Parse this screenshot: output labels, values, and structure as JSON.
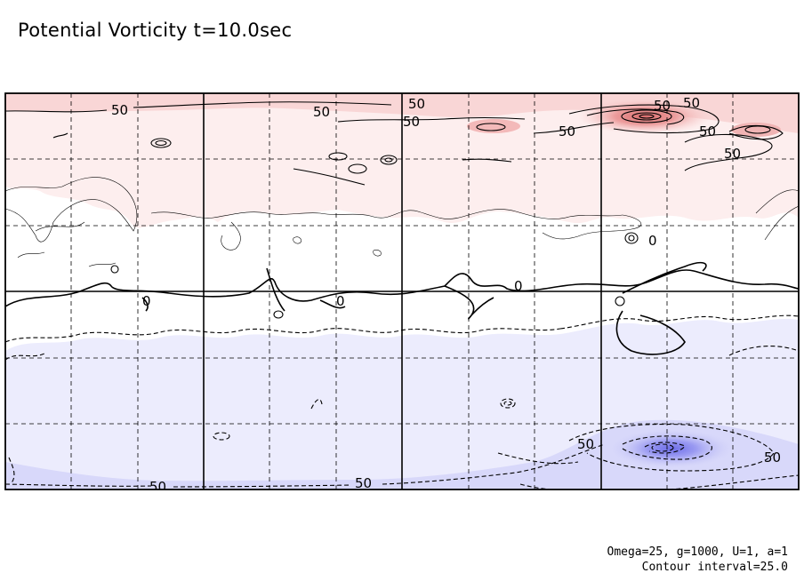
{
  "title": "Potential Vorticity t=10.0sec",
  "params": {
    "line1": "Omega=25, g=1000, U=1, a=1",
    "line2": "Contour interval=25.0"
  },
  "colors": {
    "positive_light": "#fdecec",
    "positive_mid": "#f9d2d2",
    "positive_strong": "#e88c8c",
    "negative_light": "#ececfd",
    "negative_mid": "#d4d4f8",
    "negative_strong": "#8c8cf0",
    "contour": "#000000"
  },
  "chart_data": {
    "type": "heatmap",
    "subtype": "filled contour map",
    "title": "Potential Vorticity t=10.0sec",
    "contour_interval": 25.0,
    "grid": true,
    "contour_labels": [
      "50",
      "50",
      "50",
      "50",
      "50",
      "50",
      "50",
      "0",
      "0",
      "0",
      "0",
      "50",
      "50",
      "50",
      "50",
      "50",
      "50"
    ]
  }
}
